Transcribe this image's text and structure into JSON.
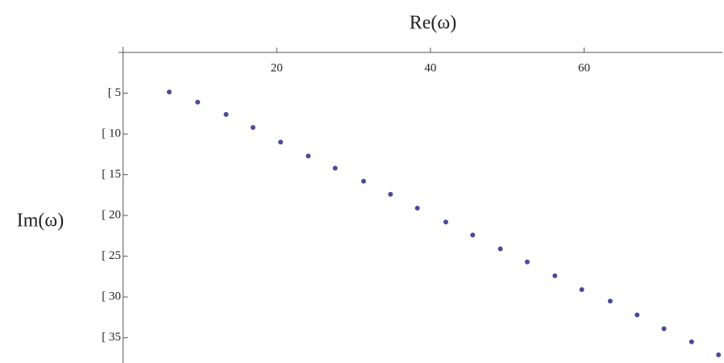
{
  "chart_data": {
    "type": "scatter",
    "x_label": "Re(ω)",
    "y_label": "Im(ω)",
    "x": [
      6.0,
      9.7,
      13.4,
      16.9,
      20.5,
      24.1,
      27.6,
      31.3,
      34.8,
      38.3,
      42.0,
      45.5,
      49.1,
      52.6,
      56.2,
      59.7,
      63.4,
      66.9,
      70.4,
      74.0,
      77.5
    ],
    "series": [
      {
        "color": "#4a4a9c",
        "values": [
          -4.85,
          -6.1,
          -7.6,
          -9.2,
          -11.0,
          -12.7,
          -14.2,
          -15.8,
          -17.4,
          -19.1,
          -20.8,
          -22.4,
          -24.1,
          -25.7,
          -27.4,
          -29.1,
          -30.5,
          -32.2,
          -33.9,
          -35.5,
          -37.1
        ]
      }
    ],
    "xlim": [
      -0.6,
      78
    ],
    "ylim": [
      0.3,
      -38.2
    ],
    "xticks": [
      20,
      40,
      60
    ],
    "yticks": [
      {
        "value": -5,
        "label": "[ 5"
      },
      {
        "value": -10,
        "label": "[ 10"
      },
      {
        "value": -15,
        "label": "[ 15"
      },
      {
        "value": -20,
        "label": "[ 20"
      },
      {
        "value": -25,
        "label": "[ 25"
      },
      {
        "value": -30,
        "label": "[ 30"
      },
      {
        "value": -35,
        "label": "[ 35"
      }
    ],
    "grid": false
  }
}
